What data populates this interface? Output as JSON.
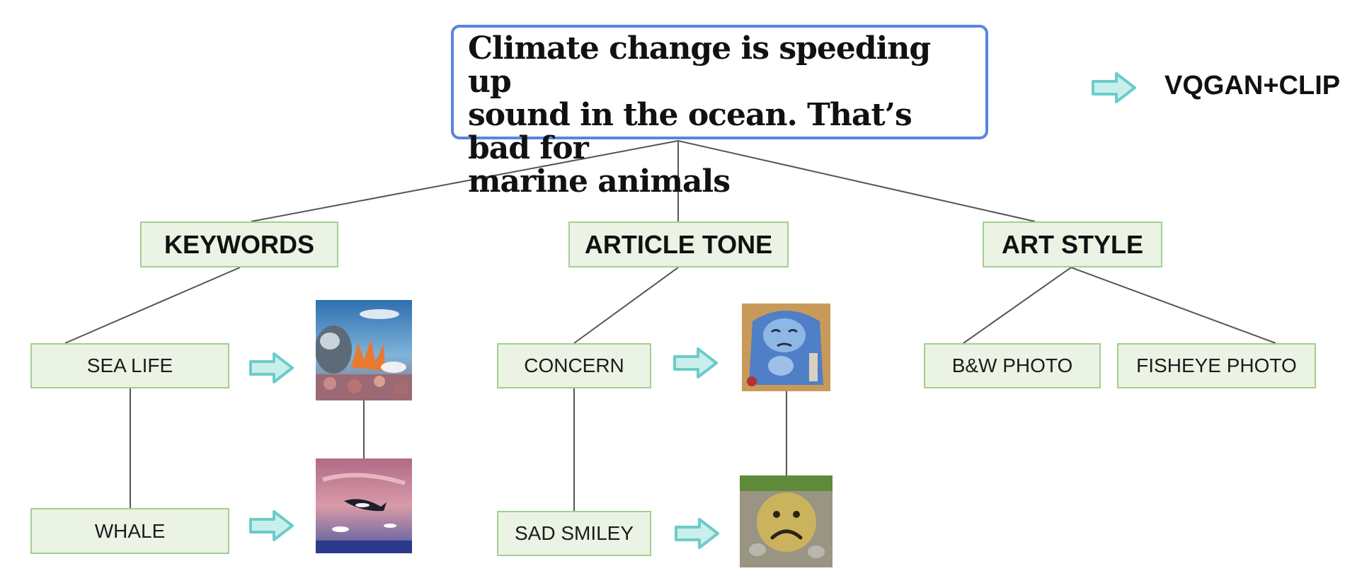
{
  "headline": {
    "lines": [
      "Climate change is speeding up",
      "sound in the ocean. That’s bad for",
      "marine animals"
    ]
  },
  "legend": {
    "label": "VQGAN+CLIP",
    "arrow_icon": "right-arrow-icon"
  },
  "categories": {
    "keywords": "KEYWORDS",
    "article_tone": "ARTICLE TONE",
    "art_style": "ART STYLE"
  },
  "leaves": {
    "sea_life": "SEA LIFE",
    "whale": "WHALE",
    "concern": "CONCERN",
    "sad_smiley": "SAD SMILEY",
    "bw_photo": "B&W PHOTO",
    "fisheye_photo": "FISHEYE PHOTO"
  },
  "colors": {
    "headline_border": "#5b84de",
    "node_fill": "#eaf3e4",
    "node_border": "#a4cf90",
    "arrow": "#6cccc8",
    "connector": "#555555"
  }
}
